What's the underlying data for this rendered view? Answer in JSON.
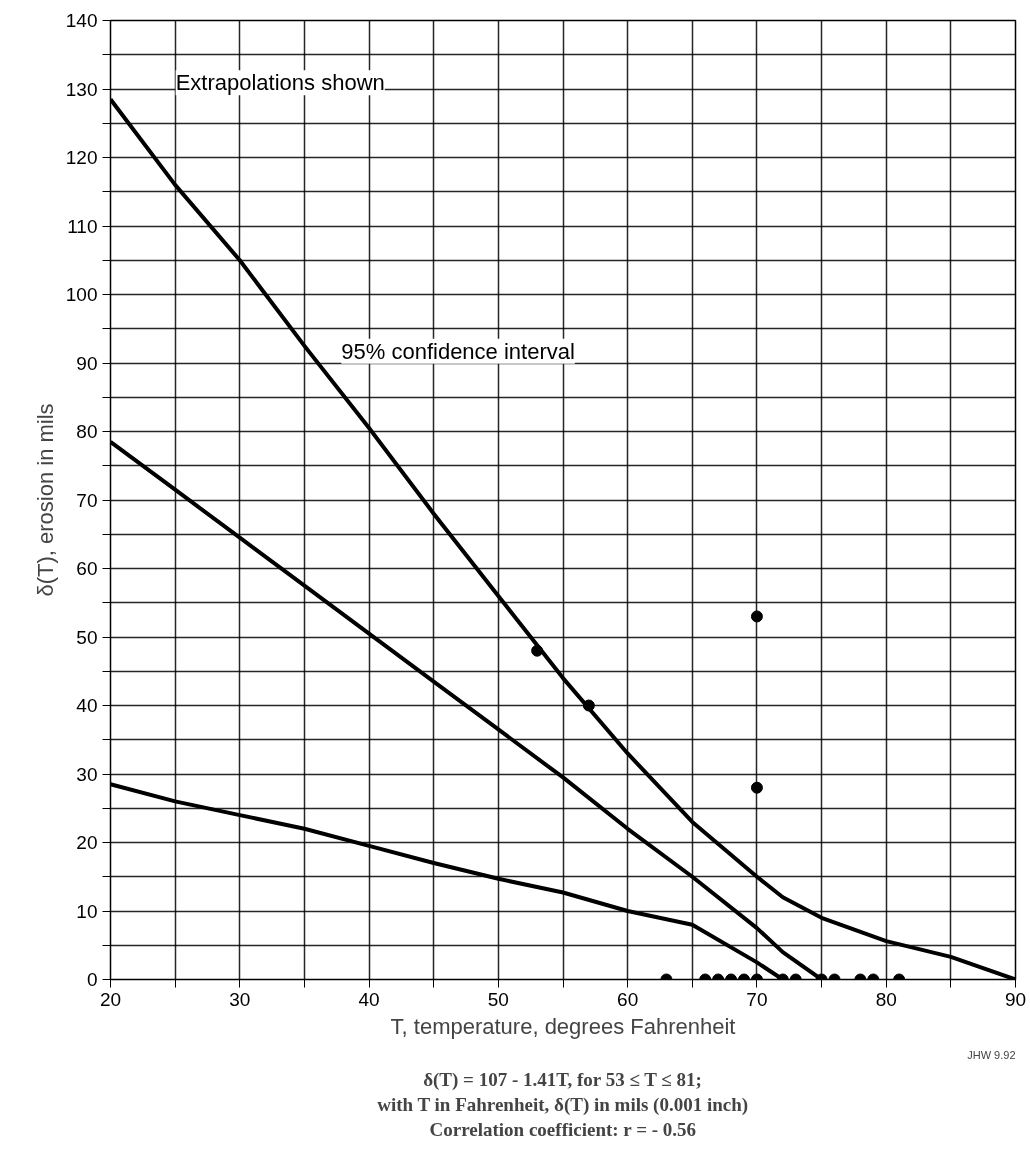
{
  "chart_data": {
    "type": "line",
    "xlabel": "T, temperature, degrees Fahrenheit",
    "ylabel": "δ(T), erosion in mils",
    "xlim": [
      20,
      90
    ],
    "xticks": [
      20,
      {
        "value": 25,
        "label": null
      },
      30,
      {
        "value": 35,
        "label": null
      },
      40,
      {
        "value": 45,
        "label": null
      },
      50,
      {
        "value": 55,
        "label": null
      },
      60,
      {
        "value": 65,
        "label": null
      },
      70,
      {
        "value": 75,
        "label": null
      },
      80,
      {
        "value": 85,
        "label": null
      },
      90
    ],
    "ylim": [
      0,
      140
    ],
    "yticks": [
      0,
      {
        "value": 5,
        "label": null
      },
      10,
      {
        "value": 15,
        "label": null
      },
      20,
      {
        "value": 25,
        "label": null
      },
      30,
      {
        "value": 35,
        "label": null
      },
      40,
      {
        "value": 45,
        "label": null
      },
      50,
      {
        "value": 55,
        "label": null
      },
      60,
      {
        "value": 65,
        "label": null
      },
      70,
      {
        "value": 75,
        "label": null
      },
      80,
      {
        "value": 85,
        "label": null
      },
      90,
      {
        "value": 95,
        "label": null
      },
      100,
      {
        "value": 105,
        "label": null
      },
      110,
      {
        "value": 115,
        "label": null
      },
      120,
      {
        "value": 125,
        "label": null
      },
      130,
      {
        "value": 135,
        "label": null
      },
      140
    ],
    "grid": true,
    "series": [
      {
        "color": "#000000",
        "x": [
          20,
          25,
          30,
          35,
          40,
          45,
          50,
          55,
          60,
          65,
          70,
          72,
          75,
          80,
          85,
          90
        ],
        "values": [
          128.5,
          116,
          105,
          92.5,
          80.5,
          68,
          56,
          44,
          33,
          23,
          15,
          12,
          9,
          5.6,
          3.3,
          0
        ]
      },
      {
        "color": "#000000",
        "x": [
          20,
          25,
          30,
          35,
          40,
          45,
          50,
          55,
          60,
          65,
          70,
          72,
          75
        ],
        "values": [
          78.5,
          71.5,
          64.5,
          57.5,
          50.5,
          43.5,
          36.5,
          29.5,
          22,
          15,
          7.5,
          4,
          0
        ]
      },
      {
        "color": "#000000",
        "x": [
          20,
          25,
          30,
          35,
          40,
          45,
          50,
          55,
          60,
          65,
          70,
          72
        ],
        "values": [
          28.5,
          26,
          24,
          22,
          19.5,
          17,
          14.7,
          12.7,
          10,
          8,
          2.5,
          0
        ]
      },
      {
        "type": "scatter",
        "color": "#000000",
        "marker": "circle",
        "x": [
          53,
          57,
          70,
          70,
          63,
          66,
          67,
          68,
          69,
          70,
          72,
          73,
          75,
          76,
          78,
          79,
          81
        ],
        "values": [
          48,
          40,
          53,
          28,
          0,
          0,
          0,
          0,
          0,
          0,
          0,
          0,
          0,
          0,
          0,
          0,
          0
        ]
      }
    ],
    "annotations": [
      "Extrapolations shown",
      "95% confidence interval",
      "JHW 9.92",
      "δ(T) = 107 - 1.41T, for 53 ≤ T ≤ 81;",
      "with T in Fahrenheit, δ(T) in mils (0.001 inch)",
      "Correlation coefficient: r = - 0.56"
    ]
  }
}
